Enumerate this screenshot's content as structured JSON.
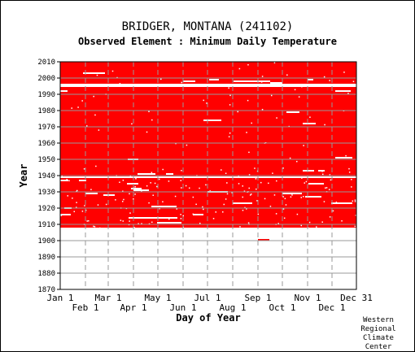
{
  "title": "BRIDGER, MONTANA   (241102)",
  "subtitle": "Observed Element : Minimum Daily Temperature",
  "credit_lines": [
    "Western",
    "Regional",
    "Climate",
    "Center"
  ],
  "colors": {
    "data": "#ff0000",
    "gap": "#ffffff",
    "grid": "#999999",
    "axis": "#000000"
  },
  "chart_data": {
    "type": "heatmap",
    "title": "Observed Element : Minimum Daily Temperature",
    "xlabel": "Day of Year",
    "ylabel": "Year",
    "x_ticks_row1": [
      "Jan 1",
      "Mar 1",
      "May 1",
      "Jul 1",
      "Sep 1",
      "Nov 1",
      "Dec 31"
    ],
    "x_ticks_row1_days": [
      1,
      60,
      121,
      182,
      244,
      305,
      365
    ],
    "x_ticks_row2": [
      "Feb 1",
      "Apr 1",
      "Jun 1",
      "Aug 1",
      "Oct 1",
      "Dec 1"
    ],
    "x_ticks_row2_days": [
      32,
      91,
      152,
      213,
      274,
      335
    ],
    "y_ticks": [
      2010,
      2000,
      1990,
      1980,
      1970,
      1960,
      1950,
      1940,
      1930,
      1920,
      1910,
      1900,
      1890,
      1880,
      1870
    ],
    "ylim": [
      1870,
      2010
    ],
    "xlim": [
      1,
      365
    ],
    "grid": true,
    "record_period": {
      "start_year": 1908,
      "end_year": 2010
    },
    "early_observations": [
      {
        "year": 1900.5,
        "start_day": 244,
        "end_day": 258
      }
    ],
    "missing_full_years": [
      1995,
      1996,
      1939
    ],
    "missing_periods": [
      {
        "year": 2003,
        "start_day": 29,
        "end_day": 56
      },
      {
        "year": 1999,
        "start_day": 305,
        "end_day": 312
      },
      {
        "year": 1999,
        "start_day": 184,
        "end_day": 196
      },
      {
        "year": 1998,
        "start_day": 152,
        "end_day": 167
      },
      {
        "year": 1998,
        "start_day": 214,
        "end_day": 244
      },
      {
        "year": 1998,
        "start_day": 244,
        "end_day": 259
      },
      {
        "year": 1997,
        "start_day": 259,
        "end_day": 274
      },
      {
        "year": 1992,
        "start_day": 1,
        "end_day": 10
      },
      {
        "year": 1992,
        "start_day": 339,
        "end_day": 358
      },
      {
        "year": 1979,
        "start_day": 279,
        "end_day": 295
      },
      {
        "year": 1974,
        "start_day": 177,
        "end_day": 199
      },
      {
        "year": 1972,
        "start_day": 299,
        "end_day": 315
      },
      {
        "year": 1951,
        "start_day": 339,
        "end_day": 360
      },
      {
        "year": 1950,
        "start_day": 84,
        "end_day": 97
      },
      {
        "year": 1943,
        "start_day": 299,
        "end_day": 313
      },
      {
        "year": 1943,
        "start_day": 318,
        "end_day": 326
      },
      {
        "year": 1941,
        "start_day": 96,
        "end_day": 118
      },
      {
        "year": 1941,
        "start_day": 131,
        "end_day": 140
      },
      {
        "year": 1937,
        "start_day": 1,
        "end_day": 11
      },
      {
        "year": 1937,
        "start_day": 24,
        "end_day": 33
      },
      {
        "year": 1935,
        "start_day": 83,
        "end_day": 97
      },
      {
        "year": 1935,
        "start_day": 306,
        "end_day": 325
      },
      {
        "year": 1932,
        "start_day": 88,
        "end_day": 101
      },
      {
        "year": 1931,
        "start_day": 91,
        "end_day": 110
      },
      {
        "year": 1930,
        "start_day": 182,
        "end_day": 207
      },
      {
        "year": 1929,
        "start_day": 32,
        "end_day": 47
      },
      {
        "year": 1929,
        "start_day": 274,
        "end_day": 298
      },
      {
        "year": 1928,
        "start_day": 54,
        "end_day": 68
      },
      {
        "year": 1927,
        "start_day": 302,
        "end_day": 322
      },
      {
        "year": 1923,
        "start_day": 213,
        "end_day": 237
      },
      {
        "year": 1923,
        "start_day": 334,
        "end_day": 360
      },
      {
        "year": 1921,
        "start_day": 113,
        "end_day": 144
      },
      {
        "year": 1920,
        "start_day": 6,
        "end_day": 15
      },
      {
        "year": 1916,
        "start_day": 1,
        "end_day": 14
      },
      {
        "year": 1916,
        "start_day": 164,
        "end_day": 177
      },
      {
        "year": 1914,
        "start_day": 85,
        "end_day": 145
      },
      {
        "year": 1911,
        "start_day": 120,
        "end_day": 150
      }
    ]
  }
}
